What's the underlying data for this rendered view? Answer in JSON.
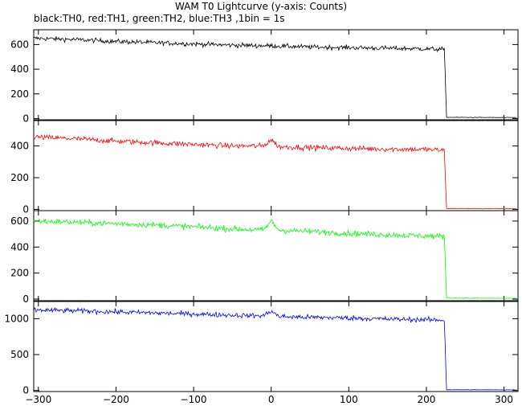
{
  "title": "WAM T0 Lightcurve (y-axis: Counts)",
  "subtitle": "black:TH0, red:TH1, green:TH2, blue:TH3 ,1bin = 1s",
  "chart_data": {
    "type": "line",
    "xlim": [
      -306,
      318
    ],
    "x_ticks": [
      -300,
      -200,
      -100,
      0,
      100,
      200,
      300
    ],
    "x_tick_labels": [
      "−300",
      "−200",
      "−100",
      "0",
      "100",
      "200",
      "300"
    ],
    "bin_seconds": 1,
    "panels": [
      {
        "name": "TH0",
        "color": "#000000",
        "ylim": [
          -10,
          720
        ],
        "y_ticks": [
          0,
          200,
          400,
          600
        ],
        "keypoints": [
          [
            -300,
            650
          ],
          [
            -250,
            640
          ],
          [
            -200,
            625
          ],
          [
            -150,
            615
          ],
          [
            -100,
            605
          ],
          [
            -50,
            595
          ],
          [
            0,
            590
          ],
          [
            50,
            580
          ],
          [
            100,
            575
          ],
          [
            150,
            570
          ],
          [
            200,
            565
          ],
          [
            223,
            560
          ],
          [
            224,
            395
          ],
          [
            226,
            10
          ],
          [
            316,
            8
          ]
        ],
        "noise": 22
      },
      {
        "name": "TH1",
        "color": "#ff0000",
        "ylim": [
          -8,
          560
        ],
        "y_ticks": [
          0,
          200,
          400
        ],
        "keypoints": [
          [
            -300,
            455
          ],
          [
            -250,
            445
          ],
          [
            -200,
            430
          ],
          [
            -150,
            420
          ],
          [
            -100,
            410
          ],
          [
            -50,
            400
          ],
          [
            -10,
            400
          ],
          [
            0,
            440
          ],
          [
            10,
            395
          ],
          [
            50,
            390
          ],
          [
            100,
            385
          ],
          [
            150,
            380
          ],
          [
            200,
            378
          ],
          [
            223,
            372
          ],
          [
            224,
            250
          ],
          [
            226,
            5
          ],
          [
            316,
            4
          ]
        ],
        "noise": 20
      },
      {
        "name": "TH2",
        "color": "#00ff00",
        "ylim": [
          -12,
          680
        ],
        "y_ticks": [
          0,
          200,
          400,
          600
        ],
        "keypoints": [
          [
            -300,
            600
          ],
          [
            -250,
            590
          ],
          [
            -200,
            580
          ],
          [
            -150,
            570
          ],
          [
            -100,
            555
          ],
          [
            -50,
            540
          ],
          [
            -10,
            530
          ],
          [
            0,
            600
          ],
          [
            10,
            530
          ],
          [
            50,
            520
          ],
          [
            100,
            505
          ],
          [
            150,
            495
          ],
          [
            200,
            485
          ],
          [
            223,
            480
          ],
          [
            224,
            340
          ],
          [
            226,
            8
          ],
          [
            316,
            6
          ]
        ],
        "noise": 26
      },
      {
        "name": "TH3",
        "color": "#0000ff",
        "ylim": [
          -15,
          1240
        ],
        "y_ticks": [
          0,
          500,
          1000
        ],
        "keypoints": [
          [
            -300,
            1120
          ],
          [
            -250,
            1110
          ],
          [
            -200,
            1095
          ],
          [
            -150,
            1080
          ],
          [
            -100,
            1065
          ],
          [
            -50,
            1050
          ],
          [
            -10,
            1040
          ],
          [
            0,
            1110
          ],
          [
            10,
            1030
          ],
          [
            50,
            1020
          ],
          [
            100,
            1010
          ],
          [
            150,
            995
          ],
          [
            200,
            985
          ],
          [
            223,
            980
          ],
          [
            224,
            680
          ],
          [
            226,
            10
          ],
          [
            316,
            8
          ]
        ],
        "noise": 40
      }
    ]
  }
}
